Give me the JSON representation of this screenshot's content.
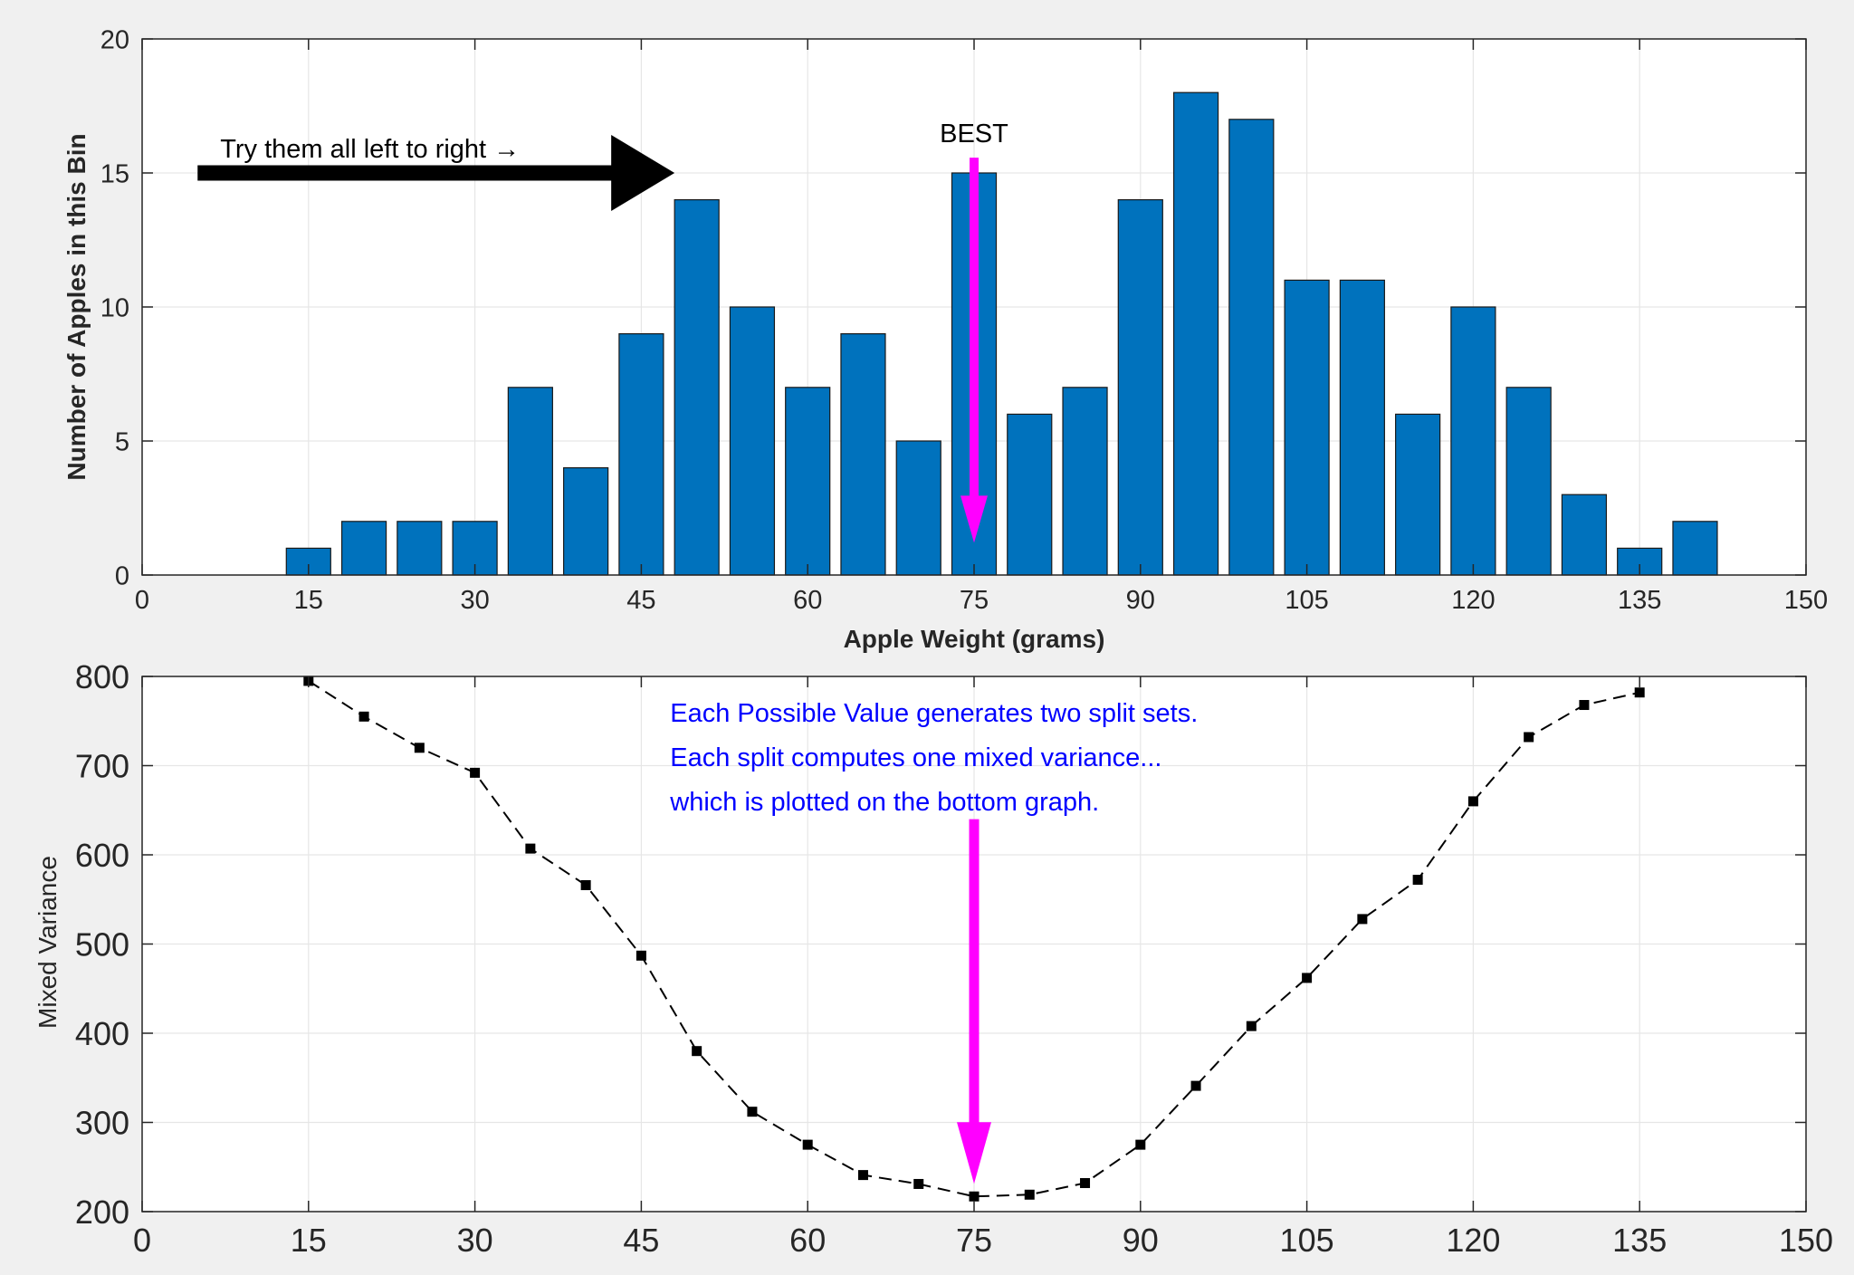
{
  "chart_data": [
    {
      "type": "bar",
      "title": "",
      "xlabel": "Apple Weight (grams)",
      "ylabel": "Number of Apples in this Bin",
      "xlim": [
        0,
        150
      ],
      "ylim": [
        0,
        20
      ],
      "xticks": [
        0,
        15,
        30,
        45,
        60,
        75,
        90,
        105,
        120,
        135,
        150
      ],
      "yticks": [
        0,
        5,
        10,
        15,
        20
      ],
      "grid": true,
      "bar_color": "#0072BD",
      "x": [
        15,
        20,
        25,
        30,
        35,
        40,
        45,
        50,
        55,
        60,
        65,
        70,
        75,
        80,
        85,
        90,
        95,
        100,
        105,
        110,
        115,
        120,
        125,
        130,
        135,
        140
      ],
      "values": [
        1,
        2,
        2,
        2,
        7,
        4,
        9,
        14,
        10,
        7,
        9,
        5,
        15,
        6,
        7,
        14,
        18,
        17,
        11,
        11,
        6,
        10,
        7,
        3,
        1,
        2
      ],
      "annotations": {
        "sweep_text": "Try them all left to right →",
        "sweep_arrow_color": "#000000",
        "sweep_arrow_from": {
          "x": 5,
          "y": 15
        },
        "sweep_arrow_to": {
          "x": 48,
          "y": 15
        },
        "best_label": "BEST",
        "best_arrow_color": "#FF00FF",
        "best_arrow_from": {
          "x": 75,
          "y": 15.3
        },
        "best_arrow_to": {
          "x": 75,
          "y": 1
        }
      }
    },
    {
      "type": "line",
      "title": "",
      "xlabel": "",
      "ylabel": "Mixed Variance",
      "xlim": [
        0,
        150
      ],
      "ylim": [
        200,
        800
      ],
      "xticks": [
        0,
        15,
        30,
        45,
        60,
        75,
        90,
        105,
        120,
        135,
        150
      ],
      "yticks": [
        200,
        300,
        400,
        500,
        600,
        700,
        800
      ],
      "grid": true,
      "line_style": "dashed",
      "marker": "square",
      "line_color": "#000000",
      "x": [
        15,
        20,
        25,
        30,
        35,
        40,
        45,
        50,
        55,
        60,
        65,
        70,
        75,
        80,
        85,
        90,
        95,
        100,
        105,
        110,
        115,
        120,
        125,
        130,
        135
      ],
      "y": [
        795,
        755,
        720,
        692,
        607,
        566,
        487,
        380,
        312,
        275,
        241,
        231,
        217,
        219,
        232,
        275,
        341,
        408,
        462,
        528,
        572,
        660,
        732,
        768,
        782
      ],
      "annotations": {
        "lines": [
          "Each Possible Value generates two split sets.",
          "Each split computes one mixed variance...",
          "which is plotted on the bottom graph."
        ],
        "text_color": "#0000FF",
        "best_arrow_color": "#FF00FF",
        "best_arrow_from": {
          "x": 75,
          "y": 640
        },
        "best_arrow_to": {
          "x": 75,
          "y": 217
        }
      }
    }
  ]
}
